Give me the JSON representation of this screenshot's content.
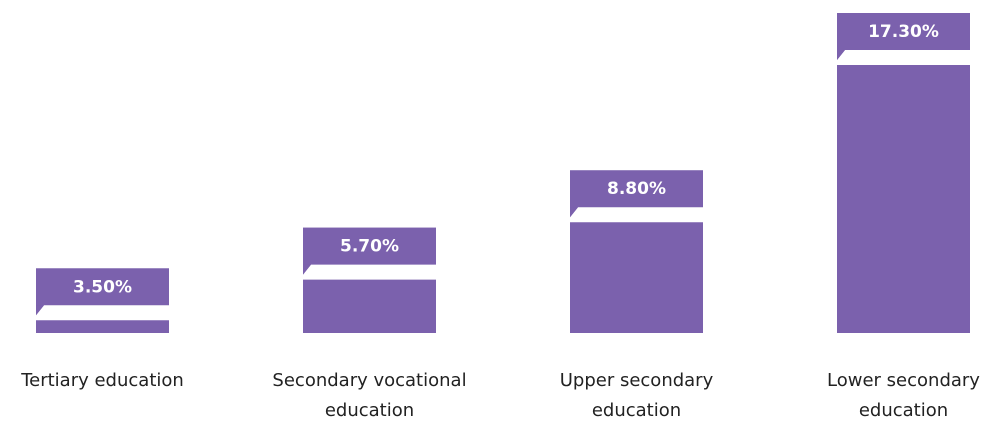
{
  "chart_data": {
    "type": "bar",
    "categories": [
      "Tertiary education",
      "Secondary vocational education",
      "Upper secondary education",
      "Lower secondary education"
    ],
    "values": [
      3.5,
      5.7,
      8.8,
      17.3
    ],
    "value_labels": [
      "3.50%",
      "5.70%",
      "8.80%",
      "17.30%"
    ],
    "color": "#7b61ad"
  }
}
